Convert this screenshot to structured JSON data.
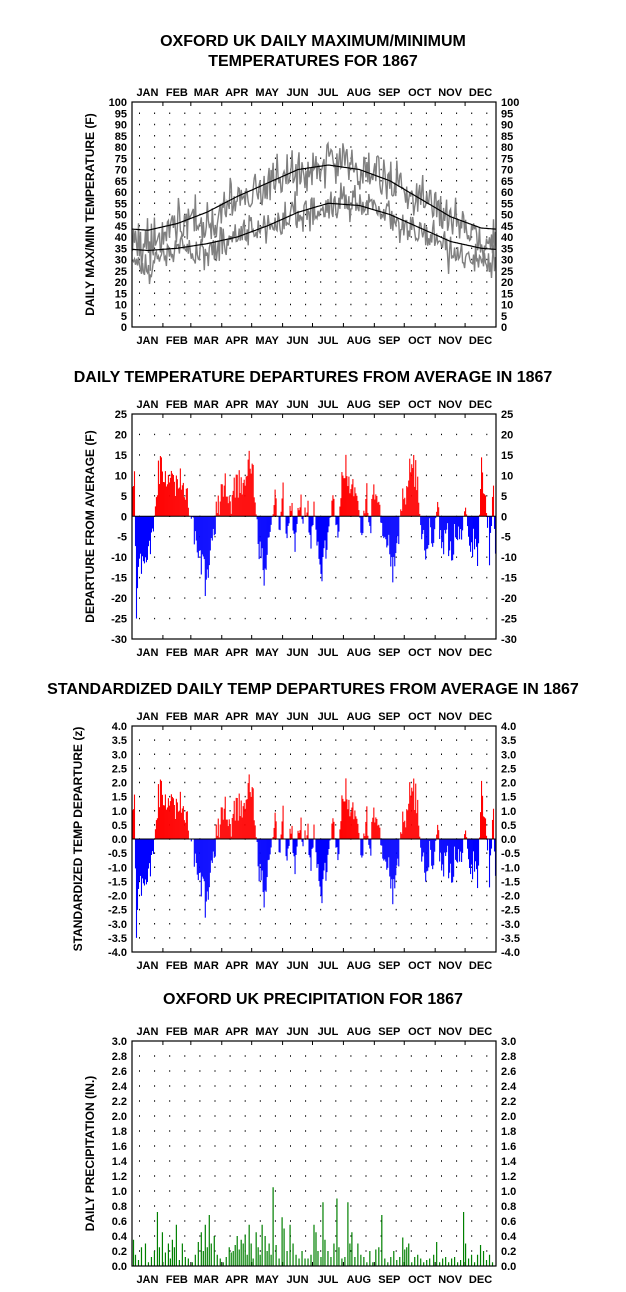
{
  "months": [
    "JAN",
    "FEB",
    "MAR",
    "APR",
    "MAY",
    "JUN",
    "JUL",
    "AUG",
    "SEP",
    "OCT",
    "NOV",
    "DEC"
  ],
  "colors": {
    "max_min_lines": "#808080",
    "normals": "#000000",
    "positive": "#ff0000",
    "negative": "#0000ff",
    "precip": "#008000"
  },
  "chart_data": [
    {
      "id": "temps",
      "type": "line",
      "title_lines": [
        "OXFORD UK DAILY MAXIMUM/MINIMUM",
        "TEMPERATURES FOR 1867"
      ],
      "ylabel": "DAILY MAX/MIN TEMPERATURE (F)",
      "ylim": [
        0,
        100
      ],
      "yticks": [
        0,
        5,
        10,
        15,
        20,
        25,
        30,
        35,
        40,
        45,
        50,
        55,
        60,
        65,
        70,
        75,
        80,
        85,
        90,
        95,
        100
      ],
      "grid": true,
      "series_max_monthly": [
        36,
        47,
        45,
        57,
        63,
        69,
        71,
        72,
        64,
        56,
        47,
        38
      ],
      "series_min_monthly": [
        26,
        36,
        33,
        40,
        45,
        52,
        54,
        56,
        50,
        42,
        35,
        29
      ],
      "normal_max_monthly": [
        43,
        46,
        51,
        58,
        64,
        70,
        72,
        70,
        65,
        57,
        49,
        44
      ],
      "normal_min_monthly": [
        34,
        35,
        37,
        40,
        45,
        51,
        55,
        54,
        50,
        44,
        38,
        35
      ],
      "extremes": {
        "max_high": 83,
        "min_low": 5
      }
    },
    {
      "id": "departures",
      "type": "bar",
      "title_lines": [
        "DAILY TEMPERATURE DEPARTURES FROM AVERAGE IN 1867"
      ],
      "ylabel": "DEPARTURE FROM AVERAGE (F)",
      "ylim": [
        -30,
        25
      ],
      "yticks": [
        -30,
        -25,
        -20,
        -15,
        -10,
        -5,
        0,
        5,
        10,
        15,
        20,
        25
      ],
      "grid": true,
      "anchors": [
        [
          0,
          5
        ],
        [
          2,
          14
        ],
        [
          4,
          -25
        ],
        [
          7,
          -10
        ],
        [
          10,
          -16
        ],
        [
          14,
          -12
        ],
        [
          18,
          -8
        ],
        [
          21,
          -2
        ],
        [
          25,
          8
        ],
        [
          29,
          14
        ],
        [
          33,
          7
        ],
        [
          37,
          10
        ],
        [
          41,
          11
        ],
        [
          45,
          7
        ],
        [
          49,
          9
        ],
        [
          53,
          7
        ],
        [
          57,
          2
        ],
        [
          60,
          -2
        ],
        [
          63,
          -5
        ],
        [
          67,
          -8
        ],
        [
          71,
          -12
        ],
        [
          74,
          -15
        ],
        [
          78,
          -9
        ],
        [
          81,
          -3
        ],
        [
          85,
          2
        ],
        [
          88,
          6
        ],
        [
          92,
          8
        ],
        [
          95,
          5
        ],
        [
          99,
          3
        ],
        [
          102,
          7
        ],
        [
          106,
          9
        ],
        [
          110,
          6
        ],
        [
          114,
          9
        ],
        [
          117,
          16
        ],
        [
          120,
          11
        ],
        [
          123,
          4
        ],
        [
          126,
          -5
        ],
        [
          129,
          -10
        ],
        [
          132,
          -15
        ],
        [
          135,
          -8
        ],
        [
          139,
          -3
        ],
        [
          143,
          5
        ],
        [
          147,
          -2
        ],
        [
          151,
          4
        ],
        [
          155,
          -4
        ],
        [
          159,
          3
        ],
        [
          163,
          -6
        ],
        [
          167,
          5
        ],
        [
          171,
          -3
        ],
        [
          175,
          4
        ],
        [
          179,
          -6
        ],
        [
          182,
          3
        ],
        [
          186,
          -8
        ],
        [
          190,
          -12
        ],
        [
          194,
          -6
        ],
        [
          198,
          -2
        ],
        [
          202,
          4
        ],
        [
          206,
          -5
        ],
        [
          210,
          7
        ],
        [
          214,
          12
        ],
        [
          218,
          6
        ],
        [
          222,
          9
        ],
        [
          226,
          4
        ],
        [
          230,
          -4
        ],
        [
          234,
          5
        ],
        [
          238,
          -3
        ],
        [
          242,
          6
        ],
        [
          246,
          3
        ],
        [
          250,
          -2
        ],
        [
          254,
          -6
        ],
        [
          258,
          -9
        ],
        [
          262,
          -13
        ],
        [
          266,
          -7
        ],
        [
          270,
          3
        ],
        [
          274,
          6
        ],
        [
          278,
          10
        ],
        [
          282,
          13
        ],
        [
          286,
          6
        ],
        [
          290,
          -5
        ],
        [
          294,
          -10
        ],
        [
          298,
          -4
        ],
        [
          302,
          -7
        ],
        [
          306,
          4
        ],
        [
          310,
          -9
        ],
        [
          314,
          -3
        ],
        [
          318,
          -6
        ],
        [
          322,
          -10
        ],
        [
          326,
          -5
        ],
        [
          330,
          -3
        ],
        [
          334,
          5
        ],
        [
          338,
          -8
        ],
        [
          342,
          -6
        ],
        [
          346,
          -10
        ],
        [
          350,
          12
        ],
        [
          354,
          6
        ],
        [
          358,
          -7
        ],
        [
          362,
          3
        ],
        [
          364,
          -10
        ]
      ],
      "extremes": {
        "max": 16,
        "min": -25
      }
    },
    {
      "id": "standardized",
      "type": "bar",
      "title_lines": [
        "STANDARDIZED DAILY TEMP DEPARTURES FROM AVERAGE IN 1867"
      ],
      "ylabel": "STANDARDIZED TEMP DEPARTURE (z)",
      "ylim": [
        -4.0,
        4.0
      ],
      "yticks": [
        -4.0,
        -3.5,
        -3.0,
        -2.5,
        -2.0,
        -1.5,
        -1.0,
        -0.5,
        0.0,
        0.5,
        1.0,
        1.5,
        2.0,
        2.5,
        3.0,
        3.5,
        4.0
      ],
      "grid": true,
      "derived_from": "departures",
      "extremes": {
        "max": 3.0,
        "min": -3.5
      }
    },
    {
      "id": "precip",
      "type": "bar",
      "title_lines": [
        "OXFORD UK PRECIPITATION FOR 1867"
      ],
      "ylabel": "DAILY PRECIPITATION (IN.)",
      "ylim": [
        0.0,
        3.0
      ],
      "yticks": [
        0.0,
        0.2,
        0.4,
        0.6,
        0.8,
        1.0,
        1.2,
        1.4,
        1.6,
        1.8,
        2.0,
        2.2,
        2.4,
        2.6,
        2.8,
        3.0
      ],
      "grid": true,
      "rain_days": [
        [
          1,
          0.35
        ],
        [
          3,
          0.15
        ],
        [
          6,
          0.08
        ],
        [
          9,
          0.25
        ],
        [
          13,
          0.3
        ],
        [
          16,
          0.05
        ],
        [
          19,
          0.12
        ],
        [
          22,
          0.2
        ],
        [
          25,
          0.72
        ],
        [
          27,
          0.25
        ],
        [
          30,
          0.45
        ],
        [
          33,
          0.18
        ],
        [
          36,
          0.3
        ],
        [
          38,
          0.1
        ],
        [
          40,
          0.35
        ],
        [
          42,
          0.25
        ],
        [
          44,
          0.55
        ],
        [
          47,
          0.08
        ],
        [
          50,
          0.3
        ],
        [
          53,
          0.12
        ],
        [
          56,
          0.1
        ],
        [
          60,
          0.05
        ],
        [
          63,
          0.15
        ],
        [
          66,
          0.32
        ],
        [
          69,
          0.45
        ],
        [
          71,
          0.2
        ],
        [
          73,
          0.55
        ],
        [
          75,
          0.25
        ],
        [
          77,
          0.68
        ],
        [
          79,
          0.3
        ],
        [
          82,
          0.4
        ],
        [
          85,
          0.15
        ],
        [
          88,
          0.1
        ],
        [
          91,
          0.05
        ],
        [
          94,
          0.12
        ],
        [
          97,
          0.25
        ],
        [
          99,
          0.18
        ],
        [
          101,
          0.2
        ],
        [
          103,
          0.28
        ],
        [
          105,
          0.4
        ],
        [
          107,
          0.22
        ],
        [
          109,
          0.35
        ],
        [
          111,
          0.3
        ],
        [
          113,
          0.42
        ],
        [
          115,
          0.15
        ],
        [
          117,
          0.55
        ],
        [
          119,
          0.3
        ],
        [
          121,
          0.1
        ],
        [
          124,
          0.45
        ],
        [
          126,
          0.25
        ],
        [
          128,
          0.15
        ],
        [
          130,
          0.55
        ],
        [
          133,
          0.4
        ],
        [
          135,
          0.2
        ],
        [
          137,
          0.3
        ],
        [
          139,
          0.15
        ],
        [
          141,
          1.05
        ],
        [
          144,
          0.28
        ],
        [
          147,
          0.1
        ],
        [
          150,
          0.65
        ],
        [
          152,
          0.5
        ],
        [
          155,
          0.2
        ],
        [
          158,
          0.55
        ],
        [
          161,
          0.3
        ],
        [
          164,
          0.15
        ],
        [
          167,
          0.1
        ],
        [
          170,
          0.2
        ],
        [
          173,
          0.1
        ],
        [
          176,
          0.1
        ],
        [
          179,
          0.15
        ],
        [
          182,
          0.55
        ],
        [
          184,
          0.45
        ],
        [
          186,
          0.2
        ],
        [
          189,
          0.12
        ],
        [
          191,
          0.85
        ],
        [
          193,
          0.35
        ],
        [
          196,
          0.2
        ],
        [
          199,
          0.12
        ],
        [
          202,
          0.3
        ],
        [
          205,
          0.9
        ],
        [
          207,
          0.25
        ],
        [
          210,
          0.1
        ],
        [
          213,
          0.12
        ],
        [
          216,
          0.85
        ],
        [
          218,
          0.3
        ],
        [
          220,
          0.45
        ],
        [
          223,
          0.12
        ],
        [
          226,
          0.3
        ],
        [
          229,
          0.15
        ],
        [
          232,
          0.12
        ],
        [
          235,
          0.05
        ],
        [
          238,
          0.2
        ],
        [
          241,
          0.05
        ],
        [
          244,
          0.22
        ],
        [
          247,
          0.25
        ],
        [
          250,
          0.68
        ],
        [
          253,
          0.1
        ],
        [
          256,
          0.05
        ],
        [
          259,
          0.12
        ],
        [
          262,
          0.2
        ],
        [
          265,
          0.08
        ],
        [
          268,
          0.12
        ],
        [
          271,
          0.38
        ],
        [
          273,
          0.22
        ],
        [
          275,
          0.25
        ],
        [
          277,
          0.3
        ],
        [
          280,
          0.05
        ],
        [
          283,
          0.12
        ],
        [
          286,
          0.15
        ],
        [
          289,
          0.1
        ],
        [
          292,
          0.05
        ],
        [
          295,
          0.08
        ],
        [
          298,
          0.1
        ],
        [
          302,
          0.15
        ],
        [
          305,
          0.32
        ],
        [
          308,
          0.05
        ],
        [
          311,
          0.1
        ],
        [
          314,
          0.12
        ],
        [
          317,
          0.05
        ],
        [
          320,
          0.1
        ],
        [
          323,
          0.12
        ],
        [
          326,
          0.05
        ],
        [
          329,
          0.08
        ],
        [
          332,
          0.72
        ],
        [
          334,
          0.3
        ],
        [
          337,
          0.1
        ],
        [
          340,
          0.15
        ],
        [
          343,
          0.05
        ],
        [
          346,
          0.15
        ],
        [
          349,
          0.28
        ],
        [
          352,
          0.2
        ],
        [
          355,
          0.08
        ],
        [
          358,
          0.15
        ],
        [
          361,
          0.05
        ]
      ],
      "max_value": 1.05
    }
  ]
}
